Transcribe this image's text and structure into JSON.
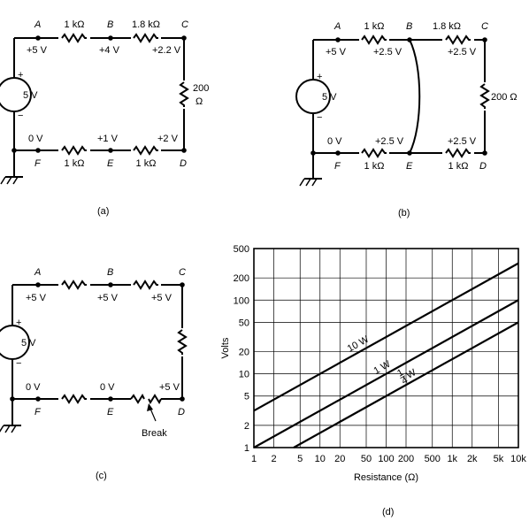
{
  "circuits": [
    {
      "id": "a",
      "caption": "(a)",
      "source": "5 V",
      "plus": "+",
      "minus": "−",
      "nodes": {
        "A": "A",
        "B": "B",
        "C": "C",
        "D": "D",
        "E": "E",
        "F": "F"
      },
      "resistors": {
        "AB": "1 kΩ",
        "BC": "1.8 kΩ",
        "CD_value": "200",
        "CD_unit": "Ω",
        "FE": "1 kΩ",
        "ED": "1 kΩ"
      },
      "voltages": {
        "A": "+5 V",
        "B": "+4 V",
        "C": "+2.2 V",
        "F": "0 V",
        "E": "+1 V",
        "D": "+2 V"
      }
    },
    {
      "id": "b",
      "caption": "(b)",
      "source": "5 V",
      "plus": "+",
      "minus": "−",
      "nodes": {
        "A": "A",
        "B": "B",
        "C": "C",
        "D": "D",
        "E": "E",
        "F": "F"
      },
      "resistors": {
        "AB": "1 kΩ",
        "BC": "1.8 kΩ",
        "CD": "200 Ω",
        "FE": "1 kΩ",
        "ED": "1 kΩ"
      },
      "voltages": {
        "A": "+5 V",
        "B": "+2.5 V",
        "C": "+2.5 V",
        "F": "0 V",
        "E": "+2.5 V",
        "D": "+2.5 V"
      }
    },
    {
      "id": "c",
      "caption": "(c)",
      "source": "5 V",
      "plus": "+",
      "minus": "−",
      "nodes": {
        "A": "A",
        "B": "B",
        "C": "C",
        "D": "D",
        "E": "E",
        "F": "F"
      },
      "voltages": {
        "A": "+5 V",
        "B": "+5 V",
        "C": "+5 V",
        "F": "0 V",
        "E": "0 V",
        "D": "+5 V"
      },
      "break_label": "Break"
    }
  ],
  "chart_caption": "(d)",
  "chart_data": {
    "type": "line",
    "xlabel": "Resistance (Ω)",
    "ylabel": "Volts",
    "xscale": "log",
    "yscale": "log",
    "xlim": [
      1,
      10000
    ],
    "ylim": [
      1,
      500
    ],
    "xticks": [
      1,
      2,
      5,
      10,
      20,
      50,
      100,
      200,
      500,
      1000,
      2000,
      5000,
      10000
    ],
    "xtick_labels": [
      "1",
      "2",
      "5",
      "10",
      "20",
      "50",
      "100",
      "200",
      "500",
      "1k",
      "2k",
      "5k",
      "10k"
    ],
    "yticks": [
      1,
      2,
      5,
      10,
      20,
      50,
      100,
      200,
      500
    ],
    "ytick_labels": [
      "1",
      "2",
      "5",
      "10",
      "20",
      "50",
      "100",
      "200",
      "500"
    ],
    "grid": true,
    "series": [
      {
        "name": "10 W",
        "x": [
          1,
          10000
        ],
        "y": [
          3.16,
          316
        ]
      },
      {
        "name": "1 W",
        "x": [
          1,
          10000
        ],
        "y": [
          1,
          100
        ]
      },
      {
        "name": "1/4 W",
        "x": [
          4,
          10000
        ],
        "y": [
          1,
          50
        ]
      }
    ]
  }
}
